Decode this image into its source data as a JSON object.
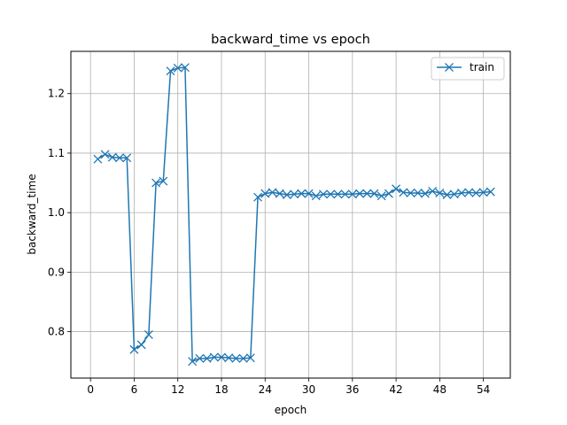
{
  "chart_data": {
    "type": "line",
    "title": "backward_time vs epoch",
    "xlabel": "epoch",
    "ylabel": "backward_time",
    "xlim": [
      -2.7,
      57.7
    ],
    "ylim": [
      0.722,
      1.271
    ],
    "xticks": [
      0,
      6,
      12,
      18,
      24,
      30,
      36,
      42,
      48,
      54
    ],
    "yticks": [
      0.8,
      0.9,
      1.0,
      1.1,
      1.2
    ],
    "ytick_labels": [
      "0.8",
      "0.9",
      "1.0",
      "1.1",
      "1.2"
    ],
    "grid": true,
    "legend_position": "top-right",
    "series": [
      {
        "name": "train",
        "color": "#1f77b4",
        "marker": "x",
        "x": [
          1,
          2,
          3,
          4,
          5,
          6,
          7,
          8,
          9,
          10,
          11,
          12,
          13,
          14,
          15,
          16,
          17,
          18,
          19,
          20,
          21,
          22,
          23,
          24,
          25,
          26,
          27,
          28,
          29,
          30,
          31,
          32,
          33,
          34,
          35,
          36,
          37,
          38,
          39,
          40,
          41,
          42,
          43,
          44,
          45,
          46,
          47,
          48,
          49,
          50,
          51,
          52,
          53,
          54,
          55
        ],
        "y": [
          1.09,
          1.098,
          1.093,
          1.092,
          1.092,
          0.77,
          0.778,
          0.795,
          1.05,
          1.053,
          1.238,
          1.243,
          1.244,
          0.75,
          0.755,
          0.755,
          0.757,
          0.757,
          0.756,
          0.755,
          0.755,
          0.756,
          1.026,
          1.032,
          1.034,
          1.032,
          1.03,
          1.031,
          1.032,
          1.032,
          1.028,
          1.031,
          1.031,
          1.031,
          1.031,
          1.031,
          1.032,
          1.032,
          1.032,
          1.028,
          1.032,
          1.04,
          1.034,
          1.033,
          1.033,
          1.032,
          1.036,
          1.033,
          1.03,
          1.031,
          1.033,
          1.034,
          1.033,
          1.034,
          1.035
        ]
      }
    ]
  }
}
